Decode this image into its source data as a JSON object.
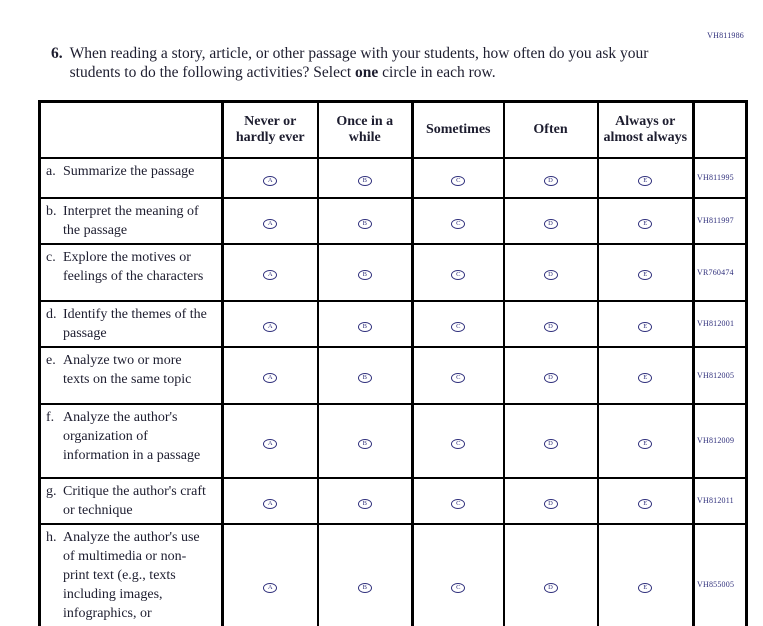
{
  "page": {
    "top_right_code": "VH811986"
  },
  "question": {
    "number": "6.",
    "text_part1": "When reading a story, article, or other passage with your students, how often do you ask your students to do the following activities? Select ",
    "bold_word": "one",
    "text_part2": " circle in each row."
  },
  "table": {
    "column_headers": [
      "",
      "Never or hardly ever",
      "Once in a while",
      "Sometimes",
      "Often",
      "Always or almost always",
      ""
    ],
    "option_letters": [
      "A",
      "B",
      "C",
      "D",
      "E"
    ],
    "rows": [
      {
        "letter": "a.",
        "label": "Summarize the passage",
        "code": "VH811995"
      },
      {
        "letter": "b.",
        "label": "Interpret the meaning of the passage",
        "code": "VH811997"
      },
      {
        "letter": "c.",
        "label": "Explore the motives or feelings of the characters",
        "code": "VR760474"
      },
      {
        "letter": "d.",
        "label": "Identify the themes of the passage",
        "code": "VH812001"
      },
      {
        "letter": "e.",
        "label": "Analyze two or more texts on the same topic",
        "code": "VH812005"
      },
      {
        "letter": "f.",
        "label": "Analyze the author's organization of information in a passage",
        "code": "VH812009"
      },
      {
        "letter": "g.",
        "label": "Critique the author's craft or technique",
        "code": "VH812011"
      },
      {
        "letter": "h.",
        "label": "Analyze the author's use of multimedia or non-print text (e.g., texts including images, infographics, or animations)",
        "code": "VH855005"
      }
    ]
  },
  "colors": {
    "ink": "#1d1d2f",
    "navy": "#30307c",
    "table_border": "#000000",
    "background": "#ffffff"
  }
}
